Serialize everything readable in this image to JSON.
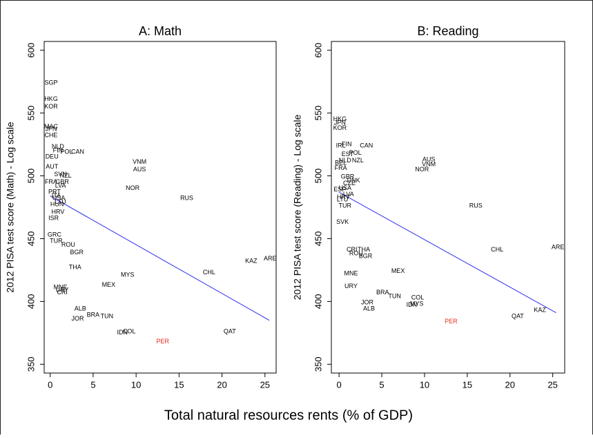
{
  "xlabel": "Total natural resources rents (% of GDP)",
  "chart_data": [
    {
      "type": "scatter",
      "title": "A: Math",
      "ylabel": "2012 PISA test score (Math) - Log scale",
      "xlim": [
        -0.7,
        26.3
      ],
      "ylim": [
        343,
        607
      ],
      "xticks": [
        0,
        5,
        10,
        15,
        20,
        25
      ],
      "yticks": [
        350,
        400,
        450,
        500,
        550,
        600
      ],
      "series": [
        {
          "color": "#000000",
          "labels": [
            "SGP",
            "HKG",
            "KOR",
            "MAC",
            "JPN",
            "CHE",
            "NLD",
            "FIN",
            "POL",
            "CAN",
            "DEU",
            "AUT",
            "VNM",
            "AUS",
            "SVN",
            "NZL",
            "FRA",
            "GBR",
            "LVA",
            "NOR",
            "RUS",
            "PRT",
            "ITA",
            "USA",
            "LTU",
            "HUN",
            "HRV",
            "ISR",
            "GRC",
            "TUR",
            "ROU",
            "BGR",
            "THA",
            "MYS",
            "CHL",
            "KAZ",
            "ARE",
            "MEX",
            "MNE",
            "URY",
            "CRI",
            "ALB",
            "JOR",
            "BRA",
            "TUN",
            "IDN",
            "COL",
            "QAT"
          ],
          "x": [
            0.1,
            0.1,
            0.1,
            0.1,
            0.1,
            0.1,
            0.9,
            0.9,
            1.9,
            3.2,
            0.2,
            0.2,
            10.4,
            10.4,
            1.2,
            1.8,
            0.1,
            1.4,
            1.2,
            9.6,
            15.9,
            0.5,
            0.7,
            1,
            1.2,
            0.8,
            0.9,
            0.4,
            0.5,
            0.7,
            2.1,
            3.1,
            2.9,
            9,
            18.5,
            23.4,
            25.6,
            6.8,
            1.2,
            1.4,
            1.4,
            3.5,
            3.2,
            5,
            6.6,
            8.4,
            9.2,
            20.9
          ],
          "values": [
            574,
            561,
            555,
            539,
            537,
            532,
            523,
            520,
            519,
            519,
            515,
            507,
            511,
            505,
            501,
            500,
            495,
            495,
            492,
            490,
            482,
            487,
            484,
            482,
            479,
            477,
            471,
            466,
            453,
            448,
            445,
            439,
            427,
            421,
            423,
            432,
            434,
            413,
            411,
            409,
            407,
            394,
            386,
            389,
            388,
            375,
            376,
            376
          ]
        },
        {
          "color": "#e8261c",
          "labels": [
            "PER"
          ],
          "x": [
            13.1
          ],
          "values": [
            368
          ]
        }
      ],
      "fit": {
        "color": "#2b2bf0",
        "x": [
          0,
          25.5
        ],
        "values": [
          484,
          385
        ]
      }
    },
    {
      "type": "scatter",
      "title": "B: Reading",
      "ylabel": "2012 PISA test score (Reading) - Log scale",
      "xlim": [
        -0.9,
        26.4
      ],
      "ylim": [
        343,
        607
      ],
      "xticks": [
        0,
        5,
        10,
        15,
        20,
        25
      ],
      "yticks": [
        350,
        400,
        450,
        500,
        550,
        600
      ],
      "series": [
        {
          "color": "#000000",
          "labels": [
            "HKG",
            "JPN",
            "KOR",
            "FIN",
            "IRL",
            "CAN",
            "POL",
            "EST",
            "NZL",
            "AUS",
            "VNM",
            "NOR",
            "NLD",
            "BEL",
            "FRA",
            "GBR",
            "DNK",
            "CZE",
            "ESP",
            "USA",
            "LVA",
            "HRV",
            "LTU",
            "RUS",
            "TUR",
            "SVK",
            "CRI",
            "THA",
            "ROU",
            "BGR",
            "CHL",
            "ARE",
            "MEX",
            "MNE",
            "URY",
            "BRA",
            "TUN",
            "COL",
            "MYS",
            "IDN",
            "JOR",
            "ALB",
            "KAZ",
            "QAT"
          ],
          "x": [
            0.1,
            0.1,
            0.1,
            0.9,
            0.2,
            3.2,
            1.9,
            1,
            2.2,
            10.5,
            10.5,
            9.7,
            0.7,
            0.2,
            0.2,
            1,
            1.7,
            1.2,
            0.1,
            0.7,
            1.1,
            0.5,
            0.4,
            16,
            0.7,
            0.4,
            1.5,
            2.9,
            2,
            3.1,
            18.5,
            25.6,
            6.9,
            1.4,
            1.4,
            5.1,
            6.5,
            9.2,
            9.1,
            8.5,
            3.3,
            3.5,
            23.5,
            20.9
          ],
          "values": [
            545,
            542,
            538,
            525,
            524,
            524,
            518,
            517,
            512,
            513,
            509,
            505,
            512,
            510,
            506,
            499,
            496,
            494,
            489,
            490,
            485,
            483,
            481,
            476,
            476,
            463,
            441,
            441,
            438,
            436,
            441,
            443,
            424,
            422,
            412,
            407,
            404,
            403,
            398,
            397,
            399,
            394,
            393,
            388
          ]
        },
        {
          "color": "#e8261c",
          "labels": [
            "PER"
          ],
          "x": [
            13.1
          ],
          "values": [
            384
          ]
        }
      ],
      "fit": {
        "color": "#2b2bf0",
        "x": [
          0,
          25.4
        ],
        "values": [
          487,
          391
        ]
      }
    }
  ]
}
